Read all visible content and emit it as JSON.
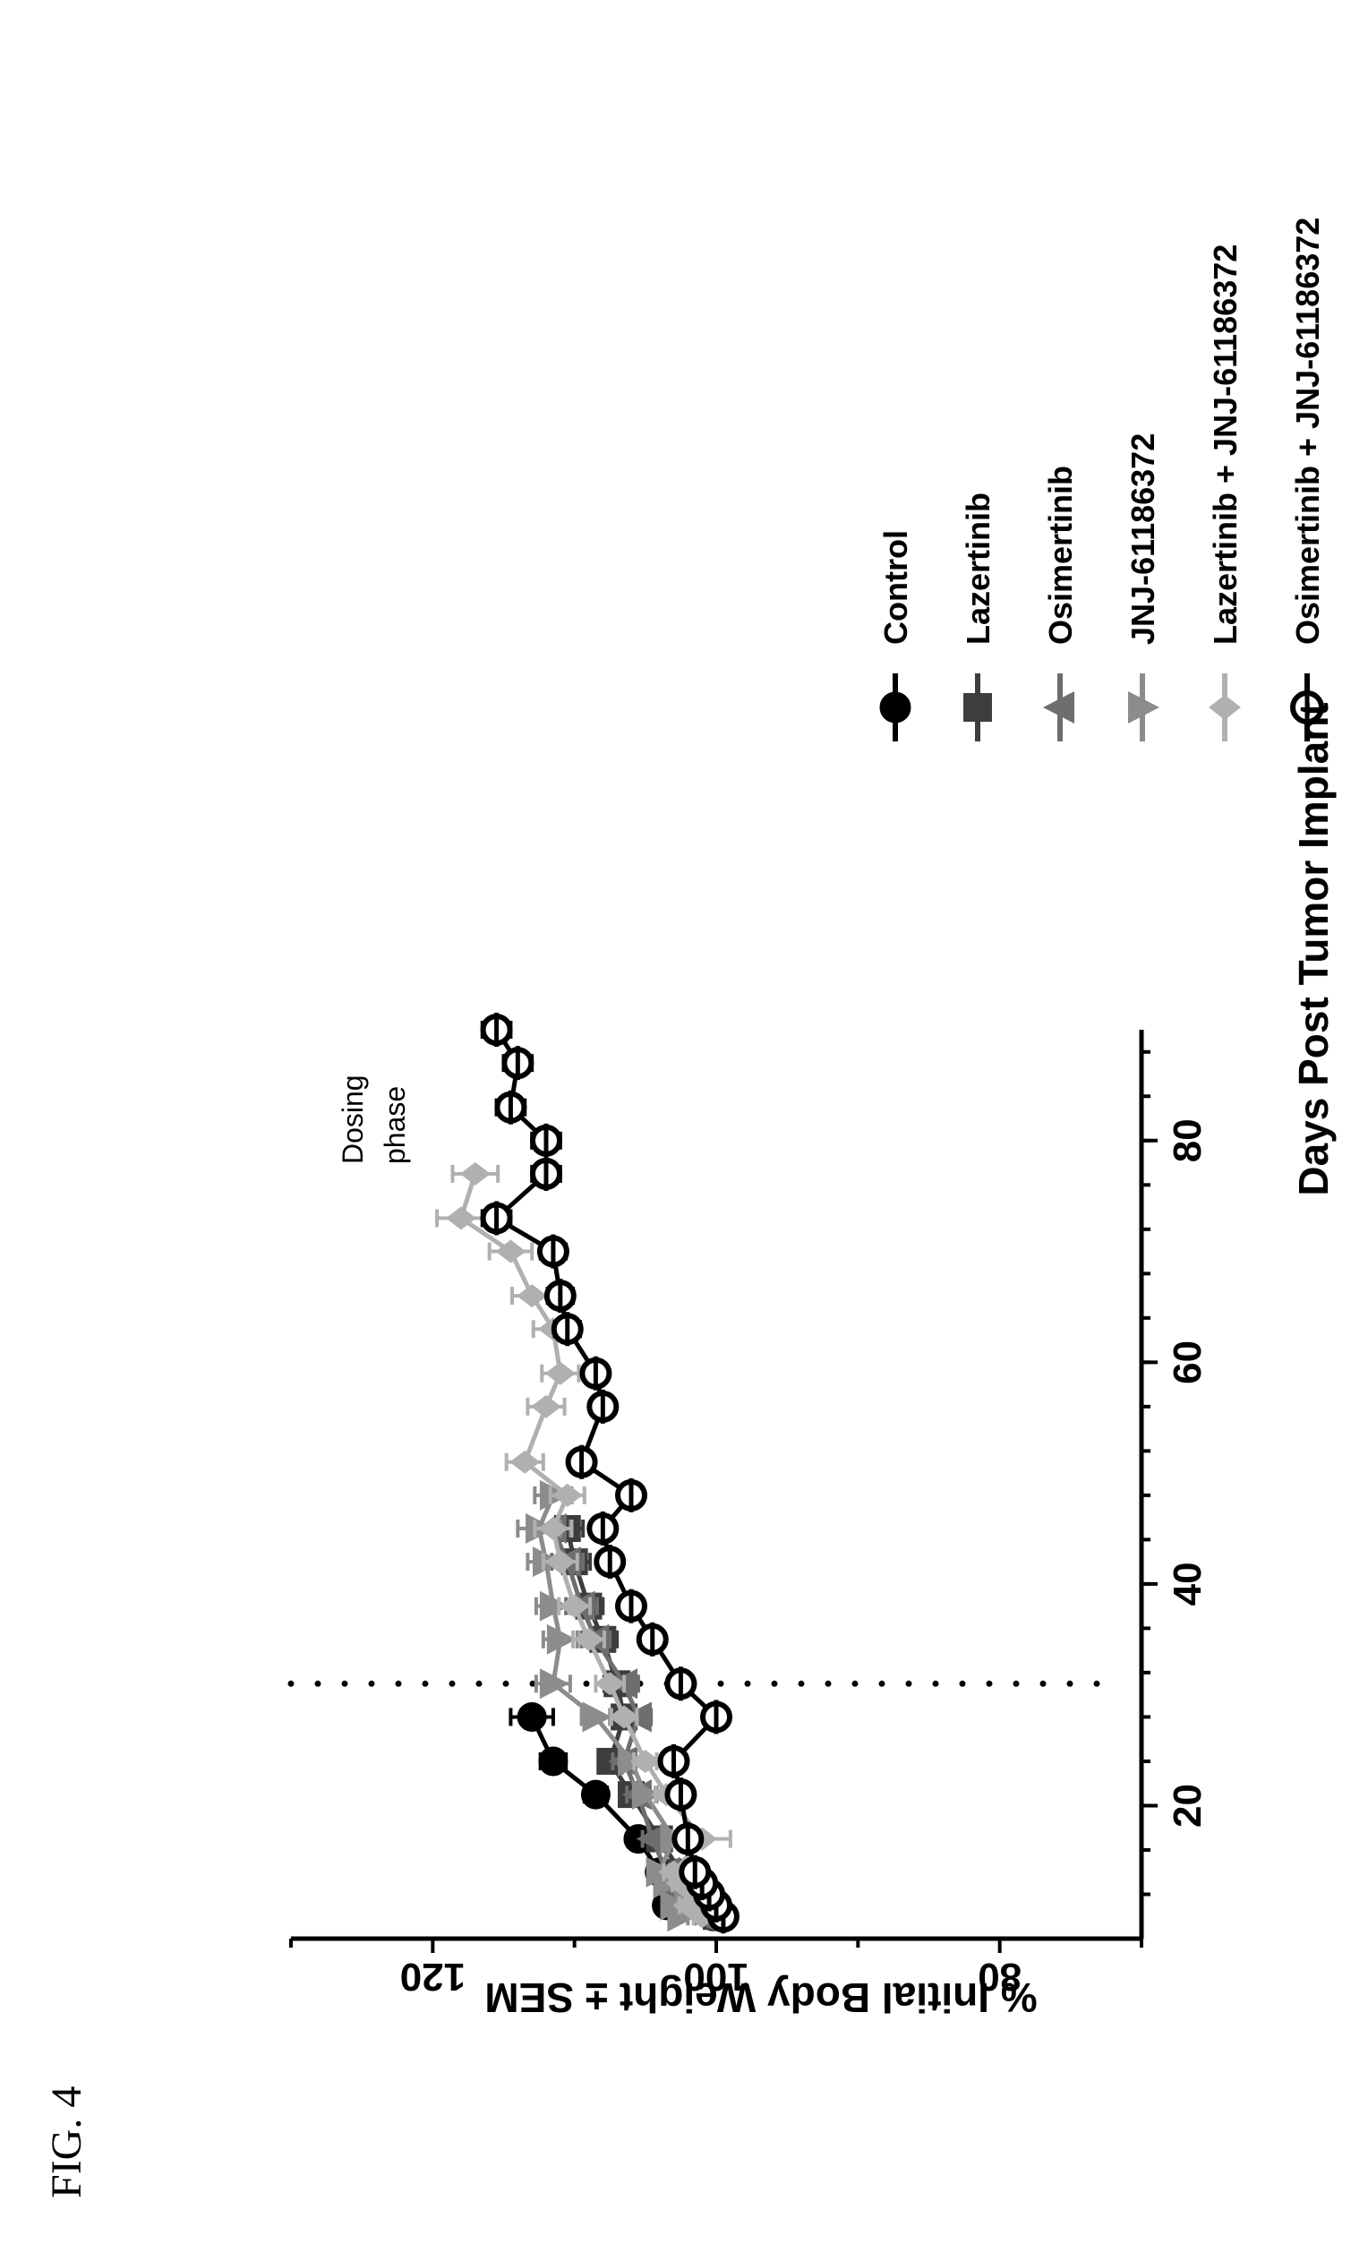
{
  "figure_label": "FIG. 4",
  "chart_data": {
    "type": "line",
    "title": "",
    "xlabel": "Days Post Tumor Implant",
    "ylabel": "% Initial Body Weight ± SEM",
    "xlim": [
      8,
      90
    ],
    "ylim": [
      70,
      130
    ],
    "x_ticks": [
      20,
      40,
      60,
      80
    ],
    "y_ticks": [
      80,
      100,
      120
    ],
    "grid": false,
    "legend_position": "right",
    "annotation": {
      "label_lines": [
        "Dosing",
        "phase"
      ],
      "dosing_end_day": 31
    },
    "series": [
      {
        "name": "Control",
        "color": "#000000",
        "marker": "filled-circle",
        "x": [
          10,
          11,
          12,
          13,
          14,
          17,
          21,
          24,
          28
        ],
        "y": [
          100.2,
          103.5,
          102.0,
          101.0,
          104.0,
          105.5,
          108.5,
          111.5,
          113.0
        ],
        "sem": [
          0.5,
          0.6,
          0.6,
          0.6,
          0.7,
          0.7,
          0.8,
          0.9,
          1.5
        ]
      },
      {
        "name": "Lazertinib",
        "color": "#3d3d3d",
        "marker": "square",
        "x": [
          10,
          11,
          12,
          13,
          14,
          17,
          21,
          24,
          28,
          31,
          35,
          38,
          42,
          45
        ],
        "y": [
          100.0,
          101.0,
          102.0,
          103.0,
          102.5,
          104.0,
          106.0,
          107.5,
          106.5,
          107.0,
          108.0,
          109.0,
          110.0,
          110.5
        ],
        "sem": [
          0.5,
          0.5,
          0.5,
          0.6,
          0.6,
          0.7,
          0.7,
          0.8,
          0.9,
          0.9,
          1.0,
          1.0,
          1.1,
          1.1
        ]
      },
      {
        "name": "Osimertinib",
        "color": "#6e6e6e",
        "marker": "triangle",
        "x": [
          10,
          11,
          12,
          13,
          14,
          17,
          21,
          24,
          28,
          31,
          35,
          38,
          42,
          45
        ],
        "y": [
          101.0,
          102.5,
          103.0,
          102.0,
          103.5,
          104.5,
          105.5,
          106.5,
          105.5,
          106.5,
          108.5,
          109.5,
          110.5,
          111.5
        ],
        "sem": [
          0.5,
          0.5,
          0.6,
          0.6,
          0.6,
          0.7,
          0.8,
          0.8,
          0.9,
          1.0,
          1.0,
          1.1,
          1.1,
          1.2
        ]
      },
      {
        "name": "JNJ-61186372",
        "color": "#8c8c8c",
        "marker": "inverted-triangle",
        "x": [
          10,
          11,
          12,
          13,
          14,
          17,
          21,
          24,
          28,
          31,
          35,
          38,
          42,
          45,
          48
        ],
        "y": [
          102.5,
          103.0,
          102.0,
          103.5,
          104.0,
          103.0,
          105.0,
          106.0,
          108.5,
          111.5,
          111.0,
          111.5,
          112.0,
          112.5,
          111.5
        ],
        "sem": [
          0.5,
          0.6,
          0.6,
          0.6,
          0.7,
          0.7,
          0.8,
          0.8,
          1.0,
          1.2,
          1.2,
          1.2,
          1.3,
          1.5,
          1.3
        ]
      },
      {
        "name": "Lazertinib + JNJ-61186372",
        "color": "#b0b0b0",
        "marker": "diamond",
        "x": [
          10,
          11,
          12,
          13,
          14,
          17,
          21,
          24,
          28,
          31,
          35,
          38,
          42,
          45,
          48,
          51,
          56,
          59,
          63,
          66,
          70,
          73,
          77
        ],
        "y": [
          101.0,
          102.0,
          101.5,
          102.5,
          103.0,
          101.0,
          103.5,
          105.0,
          106.5,
          107.5,
          109.0,
          110.0,
          111.0,
          111.5,
          110.5,
          113.5,
          112.0,
          111.0,
          111.5,
          113.0,
          114.5,
          118.0,
          117.0
        ],
        "sem": [
          0.6,
          0.6,
          0.6,
          0.6,
          0.7,
          2.0,
          0.8,
          0.8,
          0.9,
          1.0,
          1.1,
          1.1,
          1.2,
          1.3,
          1.2,
          1.3,
          1.3,
          1.3,
          1.4,
          1.4,
          1.5,
          1.7,
          1.6
        ]
      },
      {
        "name": "Osimertinib + JNJ-61186372",
        "color": "#000000",
        "marker": "open-circle",
        "x": [
          10,
          11,
          12,
          13,
          14,
          17,
          21,
          24,
          28,
          31,
          35,
          38,
          42,
          45,
          48,
          51,
          56,
          59,
          63,
          66,
          70,
          73,
          77,
          80,
          83,
          87,
          90
        ],
        "y": [
          99.5,
          100.0,
          100.5,
          101.0,
          101.5,
          102.0,
          102.5,
          103.0,
          100.0,
          102.5,
          104.5,
          106.0,
          107.5,
          108.0,
          106.0,
          109.5,
          108.0,
          108.5,
          110.5,
          111.0,
          111.5,
          115.5,
          112.0,
          112.0,
          114.5,
          114.0,
          115.5
        ],
        "sem": [
          0.4,
          0.4,
          0.4,
          0.4,
          0.5,
          0.5,
          0.5,
          0.6,
          0.6,
          0.6,
          0.7,
          0.7,
          0.7,
          0.8,
          0.8,
          0.8,
          0.8,
          0.8,
          0.9,
          0.9,
          0.9,
          1.0,
          1.0,
          1.0,
          1.0,
          1.0,
          1.0
        ]
      }
    ]
  }
}
